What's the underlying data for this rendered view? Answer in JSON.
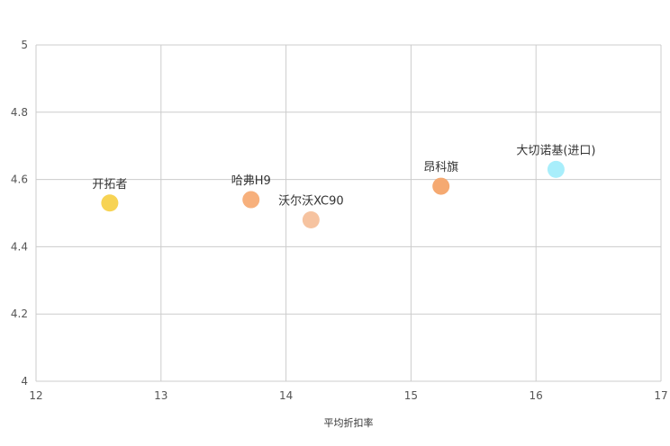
{
  "chart_data": {
    "type": "scatter",
    "title": "",
    "xlabel": "平均折扣率",
    "ylabel": "",
    "xlim": [
      12,
      17
    ],
    "ylim": [
      4,
      5
    ],
    "x_ticks": [
      12,
      13,
      14,
      15,
      16,
      17
    ],
    "y_ticks": [
      4,
      4.2,
      4.4,
      4.6,
      4.8,
      5
    ],
    "y_tick_labels": [
      "4",
      "4.2",
      "4.4",
      "4.6",
      "4.8",
      "5"
    ],
    "grid": true,
    "points": [
      {
        "label": "开拓者",
        "x": 12.59,
        "y": 4.53,
        "color": "#f7d354"
      },
      {
        "label": "哈弗H9",
        "x": 13.72,
        "y": 4.54,
        "color": "#f7b07c"
      },
      {
        "label": "沃尔沃XC90",
        "x": 14.2,
        "y": 4.48,
        "color": "#f6c3a0"
      },
      {
        "label": "昂科旗",
        "x": 15.24,
        "y": 4.58,
        "color": "#f5a971"
      },
      {
        "label": "大切诺基(进口)",
        "x": 16.16,
        "y": 4.63,
        "color": "#a8eefb"
      }
    ]
  }
}
